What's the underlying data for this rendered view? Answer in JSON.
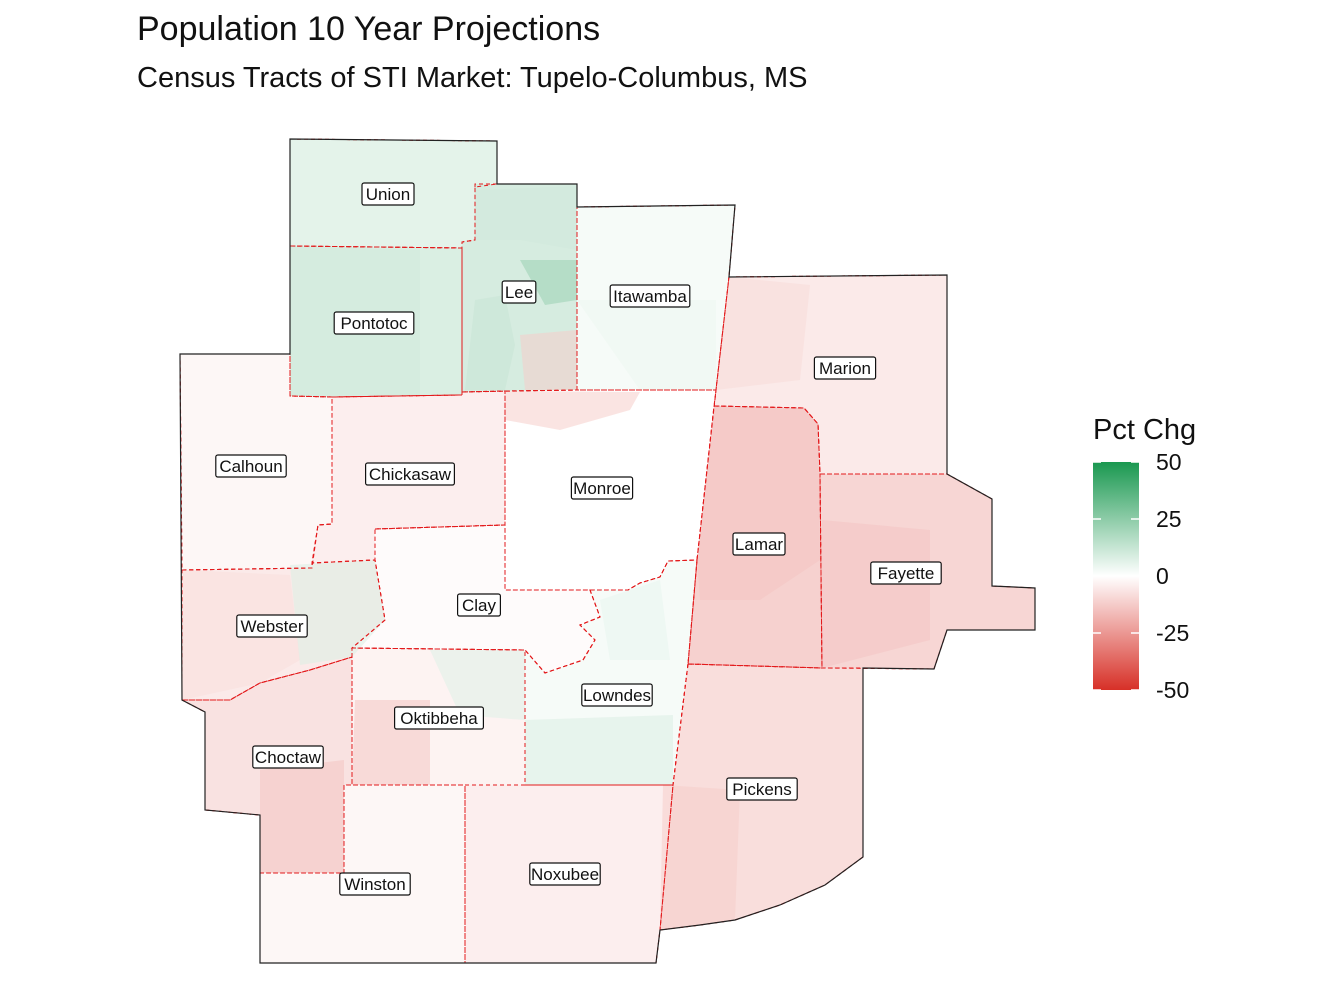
{
  "title": "Population 10 Year Projections",
  "subtitle": "Census Tracts of STI Market: Tupelo-Columbus, MS",
  "legend": {
    "title": "Pct Chg",
    "ticks": [
      "50",
      "25",
      "0",
      "-25",
      "-50"
    ],
    "colors": {
      "high": "#1a9850",
      "mid": "#ffffff",
      "low": "#d73027"
    },
    "range": [
      -50,
      50
    ]
  },
  "colors": {
    "boundary": "#222222",
    "county_border": "#e31a1c"
  },
  "counties": [
    {
      "name": "Union",
      "pct_chg": 6
    },
    {
      "name": "Lee",
      "pct_chg": 9
    },
    {
      "name": "Itawamba",
      "pct_chg": 2
    },
    {
      "name": "Pontotoc",
      "pct_chg": 8
    },
    {
      "name": "Marion",
      "pct_chg": -5
    },
    {
      "name": "Calhoun",
      "pct_chg": -2
    },
    {
      "name": "Chickasaw",
      "pct_chg": -4
    },
    {
      "name": "Monroe",
      "pct_chg": 0
    },
    {
      "name": "Lamar",
      "pct_chg": -11
    },
    {
      "name": "Fayette",
      "pct_chg": -10
    },
    {
      "name": "Clay",
      "pct_chg": -1
    },
    {
      "name": "Webster",
      "pct_chg": -5
    },
    {
      "name": "Lowndes",
      "pct_chg": 2
    },
    {
      "name": "Oktibbeha",
      "pct_chg": -3
    },
    {
      "name": "Choctaw",
      "pct_chg": -7
    },
    {
      "name": "Pickens",
      "pct_chg": -8
    },
    {
      "name": "Winston",
      "pct_chg": -2
    },
    {
      "name": "Noxubee",
      "pct_chg": -4
    }
  ]
}
